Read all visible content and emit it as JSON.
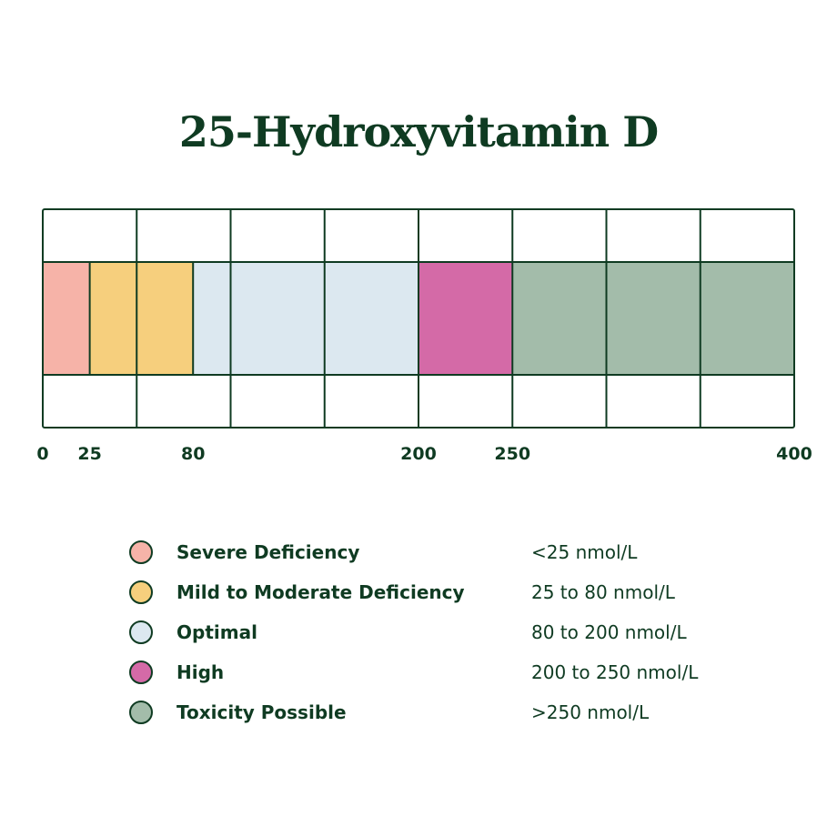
{
  "chart_data": {
    "type": "bar",
    "title": "25-Hydroxyvitamin D",
    "unit": "nmol/L",
    "xlim": [
      0,
      400
    ],
    "grid": true,
    "tick_labels": [
      "0",
      "25",
      "80",
      "200",
      "250",
      "400"
    ],
    "ticks": [
      0,
      25,
      80,
      200,
      250,
      400
    ],
    "ranges": [
      {
        "name": "Severe Deficiency",
        "start": 0,
        "end": 25,
        "color": "#f6b3a8",
        "label": "<25 nmol/L"
      },
      {
        "name": "Mild to Moderate Deficiency",
        "start": 25,
        "end": 80,
        "color": "#f6cf7d",
        "label": "25 to 80 nmol/L"
      },
      {
        "name": "Optimal",
        "start": 80,
        "end": 200,
        "color": "#dce8f0",
        "label": "80 to 200 nmol/L"
      },
      {
        "name": "High",
        "start": 200,
        "end": 250,
        "color": "#d46aa7",
        "label": "200 to 250 nmol/L"
      },
      {
        "name": "Toxicity Possible",
        "start": 250,
        "end": 400,
        "color": "#a3bcaa",
        "label": ">250 nmol/L"
      }
    ]
  },
  "colors": {
    "ink": "#0f3b22",
    "background": "#ffffff"
  }
}
